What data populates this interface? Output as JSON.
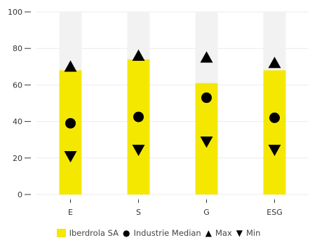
{
  "chart_data": {
    "type": "bar",
    "categories": [
      "E",
      "S",
      "G",
      "ESG"
    ],
    "ylim": [
      0,
      100
    ],
    "yticks": [
      0,
      20,
      40,
      60,
      80,
      100
    ],
    "grid": true,
    "legend_position": "bottom",
    "series": [
      {
        "name": "Iberdrola SA",
        "kind": "bar",
        "color": "#f5e800",
        "values": [
          68,
          74,
          61,
          68
        ]
      },
      {
        "name": "Industrie Median",
        "kind": "marker-circle",
        "color": "#000000",
        "values": [
          39,
          42.5,
          53,
          42
        ]
      },
      {
        "name": "Max",
        "kind": "marker-triangle-up",
        "color": "#000000",
        "values": [
          70,
          76,
          75,
          72
        ]
      },
      {
        "name": "Min",
        "kind": "marker-triangle-down",
        "color": "#000000",
        "values": [
          21,
          24.5,
          29,
          24.5
        ]
      }
    ],
    "background_bar_color": "#f2f2f2"
  },
  "legend": {
    "items": [
      {
        "label": "Iberdrola SA",
        "marker": "box",
        "color": "#f5e800"
      },
      {
        "label": "Industrie Median",
        "marker": "●"
      },
      {
        "label": "Max",
        "marker": "▲"
      },
      {
        "label": "Min",
        "marker": "▼"
      }
    ]
  }
}
